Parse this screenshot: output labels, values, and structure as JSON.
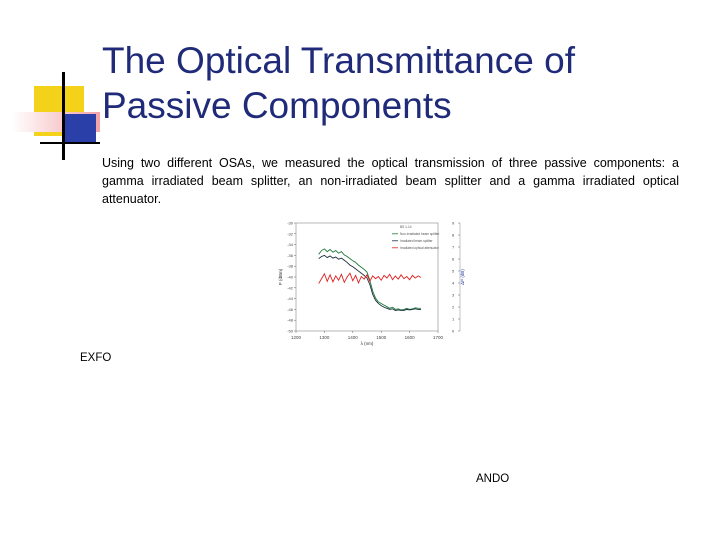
{
  "slide": {
    "title_line1": "The Optical Transmittance of",
    "title_line2": "Passive Components",
    "body": "Using two different OSAs, we measured the optical transmission of three passive components: a gamma irradiated beam splitter, an non-irradiated beam splitter and a gamma irradiated optical attenuator.",
    "caption_left": "EXFO",
    "caption_right": "ANDO",
    "colors": {
      "title": "#1f2a78",
      "deco_yellow": "#f4d21a",
      "deco_blue": "#2b3fa8",
      "deco_pink": "#f2a3a8",
      "series_green": "#1d7a3a",
      "series_dark": "#1e2f3f",
      "series_red": "#e02020"
    }
  },
  "chart_data": {
    "type": "line",
    "xlabel": "λ (nm)",
    "ylabel": "P (dBm)",
    "ylabel_right": "ΔP (dB)",
    "xlim": [
      1200,
      1700
    ],
    "ylim": [
      -50,
      -30
    ],
    "ylim_right": [
      0,
      9
    ],
    "x_ticks": [
      "1200",
      "1300",
      "1400",
      "1500",
      "1600",
      "1700"
    ],
    "y_ticks": [
      "-30",
      "-32",
      "-34",
      "-36",
      "-38",
      "-40",
      "-42",
      "-44",
      "-46",
      "-48",
      "-50"
    ],
    "y_ticks_right": [
      "9",
      "8",
      "7",
      "6",
      "5",
      "4",
      "3",
      "2",
      "1",
      "0"
    ],
    "legend": [
      "BS 1-14",
      "Non-irradiated beam splitter",
      "Irradiated beam splitter",
      "Irradiated optical attenuator"
    ],
    "series": [
      {
        "color": "#1d7a3a",
        "x": [
          1280,
          1290,
          1300,
          1310,
          1320,
          1330,
          1340,
          1350,
          1360,
          1370,
          1380,
          1390,
          1400,
          1410,
          1420,
          1430,
          1440,
          1450,
          1460,
          1470,
          1480,
          1490,
          1500,
          1510,
          1520,
          1530,
          1540,
          1550,
          1560,
          1570,
          1580,
          1590,
          1600,
          1610,
          1620,
          1630,
          1640
        ],
        "values": [
          -35.8,
          -35.1,
          -34.8,
          -35.3,
          -34.9,
          -35.4,
          -35.1,
          -35.6,
          -35.3,
          -35.9,
          -36.2,
          -36.6,
          -37.0,
          -37.3,
          -37.8,
          -38.2,
          -38.6,
          -39.1,
          -40.6,
          -42.6,
          -43.9,
          -44.6,
          -44.9,
          -45.2,
          -45.5,
          -45.8,
          -45.6,
          -46.0,
          -45.9,
          -46.1,
          -46.0,
          -45.8,
          -46.0,
          -45.9,
          -45.7,
          -45.8,
          -45.8
        ]
      },
      {
        "color": "#1e2f3f",
        "x": [
          1280,
          1290,
          1300,
          1310,
          1320,
          1330,
          1340,
          1350,
          1360,
          1370,
          1380,
          1390,
          1400,
          1410,
          1420,
          1430,
          1440,
          1450,
          1460,
          1470,
          1480,
          1490,
          1500,
          1510,
          1520,
          1530,
          1540,
          1550,
          1560,
          1570,
          1580,
          1590,
          1600,
          1610,
          1620,
          1630,
          1640
        ],
        "values": [
          -36.6,
          -36.2,
          -36.0,
          -36.4,
          -36.1,
          -36.5,
          -36.3,
          -36.7,
          -36.5,
          -36.9,
          -37.3,
          -37.8,
          -38.1,
          -38.5,
          -38.9,
          -39.3,
          -39.7,
          -40.2,
          -41.4,
          -43.2,
          -44.3,
          -44.9,
          -45.3,
          -45.6,
          -45.8,
          -46.0,
          -45.9,
          -46.2,
          -46.1,
          -46.2,
          -46.2,
          -46.0,
          -46.1,
          -46.0,
          -45.9,
          -46.0,
          -46.0
        ]
      },
      {
        "color": "#e02020",
        "x": [
          1280,
          1290,
          1300,
          1310,
          1320,
          1330,
          1340,
          1350,
          1360,
          1370,
          1380,
          1390,
          1400,
          1410,
          1420,
          1430,
          1440,
          1450,
          1460,
          1470,
          1480,
          1490,
          1500,
          1510,
          1520,
          1530,
          1540,
          1550,
          1560,
          1570,
          1580,
          1590,
          1600,
          1610,
          1620,
          1630,
          1640
        ],
        "values": [
          -41.2,
          -40.3,
          -39.4,
          -40.8,
          -39.6,
          -40.9,
          -39.8,
          -40.6,
          -39.5,
          -41.0,
          -40.0,
          -39.3,
          -40.7,
          -39.7,
          -41.1,
          -39.9,
          -40.4,
          -39.6,
          -40.8,
          -39.8,
          -40.3,
          -39.9,
          -40.6,
          -39.7,
          -40.2,
          -39.5,
          -40.5,
          -39.8,
          -40.4,
          -39.6,
          -40.3,
          -39.9,
          -40.5,
          -39.7,
          -40.2,
          -39.8,
          -40.1
        ]
      }
    ]
  }
}
